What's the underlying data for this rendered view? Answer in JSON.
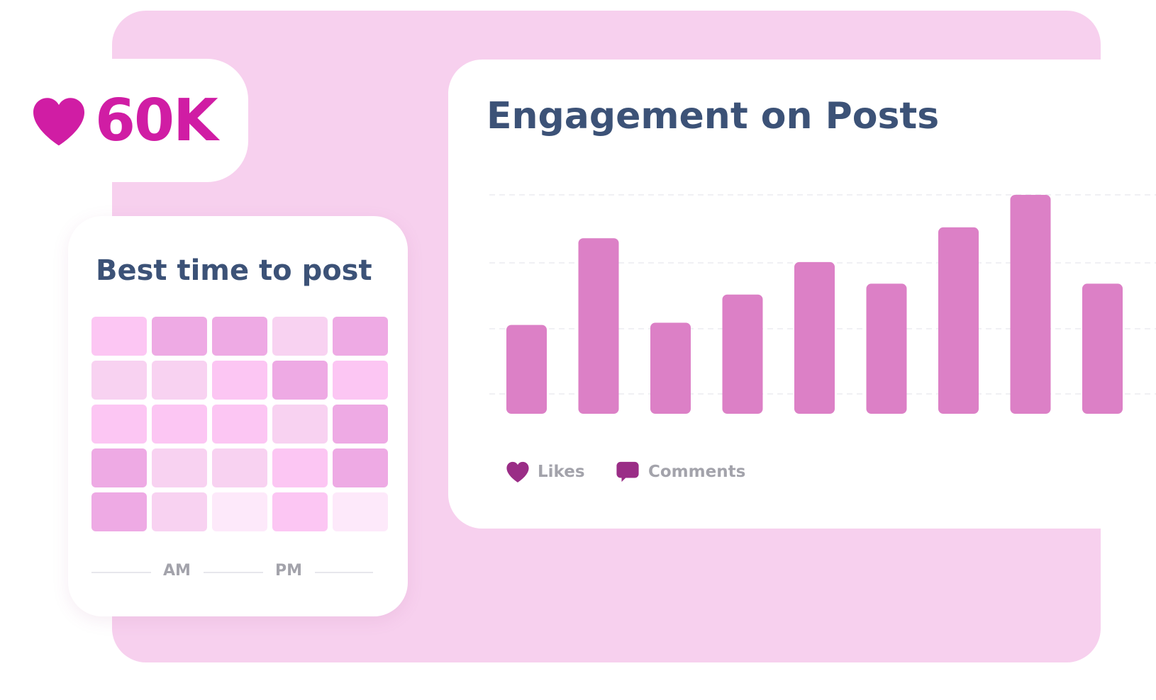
{
  "likes_badge": {
    "icon": "heart-icon",
    "count": "60K",
    "color": "#d01da4"
  },
  "best_time": {
    "title": "Best time to post",
    "am_label": "AM",
    "pm_label": "PM",
    "intensity_levels": [
      [
        4,
        2,
        2,
        1,
        2
      ],
      [
        1,
        1,
        4,
        2,
        4
      ],
      [
        4,
        4,
        4,
        1,
        2
      ],
      [
        2,
        1,
        1,
        4,
        2
      ],
      [
        2,
        1,
        0,
        4,
        0
      ]
    ],
    "level_colors": [
      "#fde9fa",
      "#f8d2f1",
      "#eeaae4",
      "#d97ccc",
      "#fcc6f3"
    ]
  },
  "engagement": {
    "title": "Engagement on Posts",
    "legend": [
      {
        "label": "Likes",
        "icon": "heart-icon",
        "color": "#9a2d86"
      },
      {
        "label": "Comments",
        "icon": "comment-bubble-icon",
        "color": "#9a2d86"
      }
    ]
  },
  "chart_data": {
    "type": "bar",
    "title": "Engagement on Posts",
    "bar_color": "#dc80c6",
    "values": [
      41,
      81,
      42,
      55,
      70,
      60,
      86,
      101,
      60
    ],
    "ylim": [
      0,
      101
    ],
    "grid": true
  }
}
